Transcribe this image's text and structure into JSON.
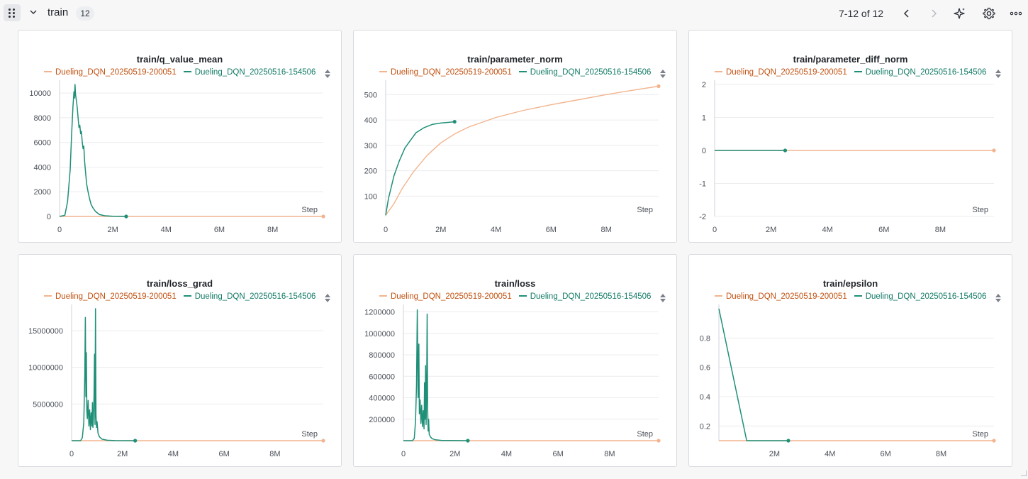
{
  "section": {
    "title": "train",
    "count": "12",
    "pagination": "7-12 of 12"
  },
  "toolbar_icons": [
    "drag-handle-icon",
    "chevron-down-icon",
    "chevron-left-icon",
    "chevron-right-icon",
    "sparkle-icon",
    "gear-icon",
    "more-icon"
  ],
  "colors": {
    "series1": "#f2b48e",
    "series1_text": "#c2500f",
    "series2": "#1f8f78",
    "series2_text": "#117a65"
  },
  "legend": {
    "series1": "Dueling_DQN_20250519-200051",
    "series2": "Dueling_DQN_20250516-154506"
  },
  "panels": [
    {
      "title": "train/q_value_mean",
      "chart_data": {
        "type": "line",
        "title": "train/q_value_mean",
        "xlabel": "Step",
        "xlim": [
          0,
          9900000
        ],
        "ylim": [
          0,
          10700
        ],
        "x_ticks": [
          {
            "v": 0,
            "label": "0"
          },
          {
            "v": 2000000,
            "label": "2M"
          },
          {
            "v": 4000000,
            "label": "4M"
          },
          {
            "v": 6000000,
            "label": "6M"
          },
          {
            "v": 8000000,
            "label": "8M"
          }
        ],
        "y_ticks": [
          {
            "v": 0,
            "label": "0"
          },
          {
            "v": 2000,
            "label": "2000"
          },
          {
            "v": 4000,
            "label": "4000"
          },
          {
            "v": 6000,
            "label": "6000"
          },
          {
            "v": 8000,
            "label": "8000"
          },
          {
            "v": 10000,
            "label": "10000"
          }
        ],
        "series": [
          {
            "name": "Dueling_DQN_20250519-200051",
            "x": [
              0,
              9900000
            ],
            "y": [
              0,
              0
            ]
          },
          {
            "name": "Dueling_DQN_20250516-154506",
            "x": [
              0,
              200000,
              300000,
              400000,
              450000,
              500000,
              540000,
              560000,
              580000,
              600000,
              630000,
              660000,
              700000,
              730000,
              760000,
              790000,
              820000,
              850000,
              880000,
              910000,
              940000,
              980000,
              1020000,
              1070000,
              1120000,
              1180000,
              1250000,
              1350000,
              1500000,
              1700000,
              2000000,
              2500000
            ],
            "y": [
              0,
              100,
              1200,
              3800,
              6500,
              8800,
              10100,
              9600,
              10700,
              9900,
              9400,
              8900,
              7900,
              7200,
              7400,
              6700,
              6900,
              6100,
              5500,
              5700,
              4500,
              3500,
              2600,
              2000,
              1500,
              1000,
              700,
              400,
              150,
              60,
              20,
              0
            ]
          }
        ]
      }
    },
    {
      "title": "train/parameter_norm",
      "chart_data": {
        "type": "line",
        "title": "train/parameter_norm",
        "xlabel": "Step",
        "xlim": [
          0,
          9900000
        ],
        "ylim": [
          20,
          540
        ],
        "x_ticks": [
          {
            "v": 0,
            "label": "0"
          },
          {
            "v": 2000000,
            "label": "2M"
          },
          {
            "v": 4000000,
            "label": "4M"
          },
          {
            "v": 6000000,
            "label": "6M"
          },
          {
            "v": 8000000,
            "label": "8M"
          }
        ],
        "y_ticks": [
          {
            "v": 100,
            "label": "100"
          },
          {
            "v": 200,
            "label": "200"
          },
          {
            "v": 300,
            "label": "300"
          },
          {
            "v": 400,
            "label": "400"
          },
          {
            "v": 500,
            "label": "500"
          }
        ],
        "series": [
          {
            "name": "Dueling_DQN_20250519-200051",
            "x": [
              0,
              300000,
              600000,
              1000000,
              1500000,
              2000000,
              2500000,
              3000000,
              4000000,
              5000000,
              6000000,
              7000000,
              8000000,
              9000000,
              9900000
            ],
            "y": [
              25,
              70,
              130,
              195,
              260,
              310,
              345,
              372,
              410,
              438,
              460,
              480,
              500,
              518,
              533
            ]
          },
          {
            "name": "Dueling_DQN_20250516-154506",
            "x": [
              0,
              100000,
              300000,
              500000,
              700000,
              900000,
              1100000,
              1400000,
              1700000,
              2000000,
              2500000
            ],
            "y": [
              25,
              90,
              180,
              240,
              290,
              320,
              350,
              370,
              383,
              388,
              393
            ]
          }
        ]
      }
    },
    {
      "title": "train/parameter_diff_norm",
      "chart_data": {
        "type": "line",
        "title": "train/parameter_diff_norm",
        "xlabel": "Step",
        "xlim": [
          0,
          9900000
        ],
        "ylim": [
          -2,
          2
        ],
        "x_ticks": [
          {
            "v": 0,
            "label": "0"
          },
          {
            "v": 2000000,
            "label": "2M"
          },
          {
            "v": 4000000,
            "label": "4M"
          },
          {
            "v": 6000000,
            "label": "6M"
          },
          {
            "v": 8000000,
            "label": "8M"
          }
        ],
        "y_ticks": [
          {
            "v": -2,
            "label": "-2"
          },
          {
            "v": -1,
            "label": "-1"
          },
          {
            "v": 0,
            "label": "0"
          },
          {
            "v": 1,
            "label": "1"
          },
          {
            "v": 2,
            "label": "2"
          }
        ],
        "series": [
          {
            "name": "Dueling_DQN_20250519-200051",
            "x": [
              0,
              9900000
            ],
            "y": [
              0,
              0
            ]
          },
          {
            "name": "Dueling_DQN_20250516-154506",
            "x": [
              0,
              2500000
            ],
            "y": [
              0,
              0
            ]
          }
        ]
      }
    },
    {
      "title": "train/loss_grad",
      "chart_data": {
        "type": "line",
        "title": "train/loss_grad",
        "xlabel": "Step",
        "xlim": [
          0,
          9900000
        ],
        "ylim": [
          0,
          18000000
        ],
        "x_ticks": [
          {
            "v": 0,
            "label": "0"
          },
          {
            "v": 2000000,
            "label": "2M"
          },
          {
            "v": 4000000,
            "label": "4M"
          },
          {
            "v": 6000000,
            "label": "6M"
          },
          {
            "v": 8000000,
            "label": "8M"
          }
        ],
        "y_ticks": [
          {
            "v": 5000000,
            "label": "5000000"
          },
          {
            "v": 10000000,
            "label": "10000000"
          },
          {
            "v": 15000000,
            "label": "15000000"
          }
        ],
        "series": [
          {
            "name": "Dueling_DQN_20250519-200051",
            "x": [
              0,
              9900000
            ],
            "y": [
              0,
              0
            ]
          },
          {
            "name": "Dueling_DQN_20250516-154506",
            "x": [
              0,
              350000,
              420000,
              480000,
              520000,
              540000,
              560000,
              580000,
              600000,
              620000,
              650000,
              680000,
              710000,
              740000,
              770000,
              800000,
              820000,
              840000,
              860000,
              880000,
              900000,
              920000,
              940000,
              960000,
              980000,
              1000000,
              1040000,
              1100000,
              1200000,
              1400000,
              1700000,
              2500000
            ],
            "y": [
              0,
              0,
              400000,
              2500000,
              9000000,
              16800000,
              6000000,
              12000000,
              4000000,
              3000000,
              5500000,
              2000000,
              4200000,
              1500000,
              3800000,
              2000000,
              5200000,
              1800000,
              3200000,
              6000000,
              11800000,
              2200000,
              18000000,
              3600000,
              1800000,
              2600000,
              1000000,
              500000,
              200000,
              60000,
              10000,
              0
            ]
          }
        ]
      }
    },
    {
      "title": "train/loss",
      "chart_data": {
        "type": "line",
        "title": "train/loss",
        "xlabel": "Step",
        "xlim": [
          0,
          9900000
        ],
        "ylim": [
          0,
          1230000
        ],
        "x_ticks": [
          {
            "v": 0,
            "label": "0"
          },
          {
            "v": 2000000,
            "label": "2M"
          },
          {
            "v": 4000000,
            "label": "4M"
          },
          {
            "v": 6000000,
            "label": "6M"
          },
          {
            "v": 8000000,
            "label": "8M"
          }
        ],
        "y_ticks": [
          {
            "v": 200000,
            "label": "200000"
          },
          {
            "v": 400000,
            "label": "400000"
          },
          {
            "v": 600000,
            "label": "600000"
          },
          {
            "v": 800000,
            "label": "800000"
          },
          {
            "v": 1000000,
            "label": "1000000"
          },
          {
            "v": 1200000,
            "label": "1200000"
          }
        ],
        "series": [
          {
            "name": "Dueling_DQN_20250519-200051",
            "x": [
              0,
              9900000
            ],
            "y": [
              0,
              0
            ]
          },
          {
            "name": "Dueling_DQN_20250516-154506",
            "x": [
              0,
              350000,
              420000,
              470000,
              510000,
              540000,
              570000,
              600000,
              620000,
              650000,
              680000,
              710000,
              740000,
              770000,
              800000,
              820000,
              840000,
              860000,
              880000,
              900000,
              920000,
              940000,
              960000,
              980000,
              1000000,
              1050000,
              1120000,
              1250000,
              1500000,
              2500000
            ],
            "y": [
              0,
              0,
              20000,
              180000,
              520000,
              1220000,
              400000,
              900000,
              250000,
              380000,
              160000,
              330000,
              130000,
              280000,
              110000,
              540000,
              200000,
              700000,
              150000,
              400000,
              1180000,
              300000,
              90000,
              200000,
              60000,
              35000,
              18000,
              8000,
              2000,
              0
            ]
          }
        ]
      }
    },
    {
      "title": "train/epsilon",
      "chart_data": {
        "type": "line",
        "title": "train/epsilon",
        "xlabel": "Step",
        "xlim": [
          0,
          9900000
        ],
        "ylim": [
          0.1,
          1.0
        ],
        "x_ticks": [
          {
            "v": 2000000,
            "label": "2M"
          },
          {
            "v": 4000000,
            "label": "4M"
          },
          {
            "v": 6000000,
            "label": "6M"
          },
          {
            "v": 8000000,
            "label": "8M"
          }
        ],
        "y_ticks": [
          {
            "v": 0.2,
            "label": "0.2"
          },
          {
            "v": 0.4,
            "label": "0.4"
          },
          {
            "v": 0.6,
            "label": "0.6"
          },
          {
            "v": 0.8,
            "label": "0.8"
          }
        ],
        "series": [
          {
            "name": "Dueling_DQN_20250519-200051",
            "x": [
              0,
              9900000
            ],
            "y": [
              0.1,
              0.1
            ]
          },
          {
            "name": "Dueling_DQN_20250516-154506",
            "x": [
              0,
              1000000,
              2500000
            ],
            "y": [
              1.0,
              0.1,
              0.1
            ]
          }
        ]
      }
    }
  ]
}
